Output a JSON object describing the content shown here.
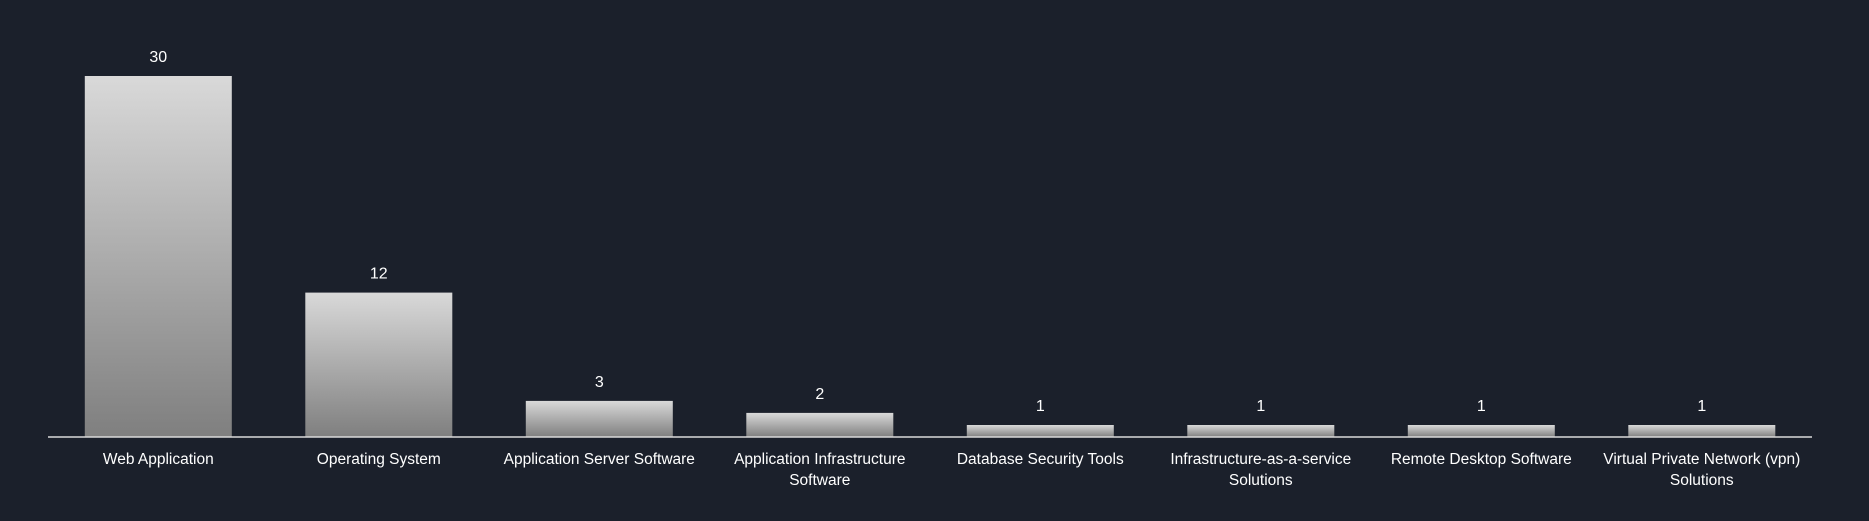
{
  "chart_data": {
    "type": "bar",
    "title": "",
    "xlabel": "",
    "ylabel": "",
    "categories": [
      [
        "Web Application"
      ],
      [
        "Operating System"
      ],
      [
        "Application Server Software"
      ],
      [
        "Application Infrastructure",
        "Software"
      ],
      [
        "Database Security Tools"
      ],
      [
        "Infrastructure-as-a-service",
        "Solutions"
      ],
      [
        "Remote Desktop Software"
      ],
      [
        "Virtual Private Network (vpn)",
        "Solutions"
      ]
    ],
    "values": [
      30,
      12,
      3,
      2,
      1,
      1,
      1,
      1
    ],
    "ylim": [
      0,
      30
    ],
    "grid": false,
    "legend": "none",
    "data_labels": true
  },
  "colors": {
    "background": "#1b202b",
    "bar_top": "#d9d9d9",
    "bar_bottom": "#7f7f7f",
    "axis": "#d9d9d9",
    "text": "#ffffff"
  }
}
